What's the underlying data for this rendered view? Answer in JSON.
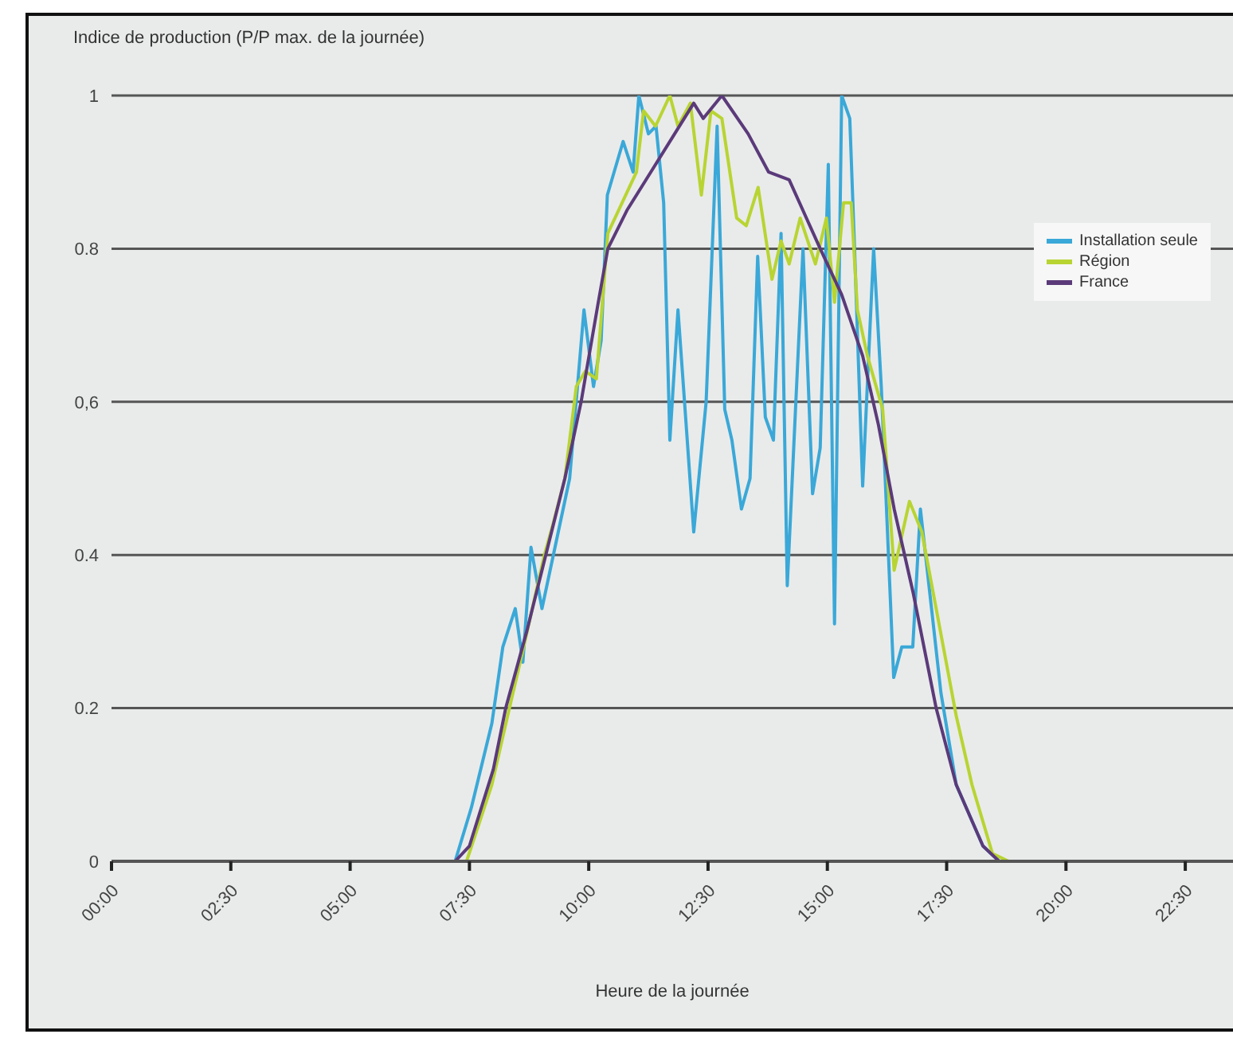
{
  "chart_data": {
    "type": "line",
    "xlabel": "Heure de la journée",
    "ylabel": "Indice de production (P/P max. de la journée)",
    "xlim": [
      0,
      23.5
    ],
    "ylim": [
      0,
      1
    ],
    "xticks": [
      {
        "value": 0,
        "label": "00:00"
      },
      {
        "value": 2.5,
        "label": "02:30"
      },
      {
        "value": 5,
        "label": "05:00"
      },
      {
        "value": 7.5,
        "label": "07:30"
      },
      {
        "value": 10,
        "label": "10:00"
      },
      {
        "value": 12.5,
        "label": "12:30"
      },
      {
        "value": 15,
        "label": "15:00"
      },
      {
        "value": 17.5,
        "label": "17:30"
      },
      {
        "value": 20,
        "label": "20:00"
      },
      {
        "value": 22.5,
        "label": "22:30"
      }
    ],
    "yticks": [
      0,
      0.2,
      0.4,
      {
        "value": 0.6,
        "label": "0,6"
      },
      0.8,
      1
    ],
    "grid": "y",
    "legend": "top right",
    "marker": "none",
    "line_style": "solid",
    "series": [
      {
        "name": "Installation seule",
        "color": "#3aa8d8",
        "x": [
          0,
          7.2,
          7.54,
          7.97,
          8.2,
          8.46,
          8.62,
          8.79,
          9.02,
          9.6,
          9.9,
          10.1,
          10.26,
          10.39,
          10.72,
          10.93,
          11.05,
          11.25,
          11.41,
          11.57,
          11.7,
          11.87,
          12.03,
          12.2,
          12.46,
          12.69,
          12.85,
          13.0,
          13.2,
          13.38,
          13.54,
          13.7,
          13.87,
          14.03,
          14.16,
          14.49,
          14.69,
          14.85,
          15.02,
          15.15,
          15.3,
          15.47,
          15.57,
          15.74,
          15.97,
          16.13,
          16.39,
          16.56,
          16.79,
          16.95,
          17.38,
          17.7,
          18.26,
          18.6,
          23.5
        ],
        "values": [
          0,
          0,
          0.07,
          0.18,
          0.28,
          0.33,
          0.26,
          0.41,
          0.33,
          0.5,
          0.72,
          0.62,
          0.68,
          0.87,
          0.94,
          0.9,
          1.0,
          0.95,
          0.96,
          0.86,
          0.55,
          0.72,
          0.58,
          0.43,
          0.6,
          0.96,
          0.59,
          0.55,
          0.46,
          0.5,
          0.79,
          0.58,
          0.55,
          0.82,
          0.36,
          0.8,
          0.48,
          0.54,
          0.91,
          0.31,
          1.0,
          0.97,
          0.8,
          0.49,
          0.8,
          0.62,
          0.24,
          0.28,
          0.28,
          0.46,
          0.22,
          0.1,
          0.02,
          0,
          0
        ]
      },
      {
        "name": "Région",
        "color": "#b8d432",
        "x": [
          0,
          7.44,
          7.97,
          8.3,
          8.6,
          9.07,
          9.25,
          9.5,
          9.74,
          9.93,
          10.16,
          10.4,
          10.7,
          11.0,
          11.15,
          11.4,
          11.7,
          11.87,
          12.13,
          12.36,
          12.56,
          12.79,
          13.1,
          13.3,
          13.55,
          13.84,
          14.03,
          14.2,
          14.43,
          14.75,
          14.98,
          15.15,
          15.34,
          15.5,
          15.63,
          15.84,
          16.16,
          16.4,
          16.72,
          16.98,
          17.7,
          18.03,
          18.46,
          18.8,
          23.5
        ],
        "values": [
          0,
          0,
          0.1,
          0.19,
          0.27,
          0.4,
          0.44,
          0.5,
          0.62,
          0.64,
          0.63,
          0.82,
          0.86,
          0.9,
          0.98,
          0.96,
          1.0,
          0.96,
          0.99,
          0.87,
          0.98,
          0.97,
          0.84,
          0.83,
          0.88,
          0.76,
          0.81,
          0.78,
          0.84,
          0.78,
          0.84,
          0.73,
          0.86,
          0.86,
          0.72,
          0.66,
          0.59,
          0.38,
          0.47,
          0.43,
          0.19,
          0.1,
          0.01,
          0,
          0
        ]
      },
      {
        "name": "France",
        "color": "#5b3a7a",
        "x": [
          0,
          7.2,
          7.5,
          8.0,
          8.26,
          8.7,
          9.1,
          9.5,
          9.84,
          10.2,
          10.4,
          10.8,
          11.3,
          11.8,
          12.2,
          12.4,
          12.79,
          13.34,
          13.77,
          14.2,
          14.85,
          15.3,
          15.74,
          16.07,
          16.4,
          16.8,
          17.28,
          17.7,
          18.26,
          18.6,
          23.5
        ],
        "values": [
          0,
          0,
          0.02,
          0.12,
          0.2,
          0.3,
          0.4,
          0.5,
          0.6,
          0.73,
          0.8,
          0.85,
          0.9,
          0.95,
          0.99,
          0.97,
          1.0,
          0.95,
          0.9,
          0.89,
          0.8,
          0.74,
          0.66,
          0.57,
          0.46,
          0.35,
          0.2,
          0.1,
          0.02,
          0,
          0
        ]
      }
    ]
  }
}
